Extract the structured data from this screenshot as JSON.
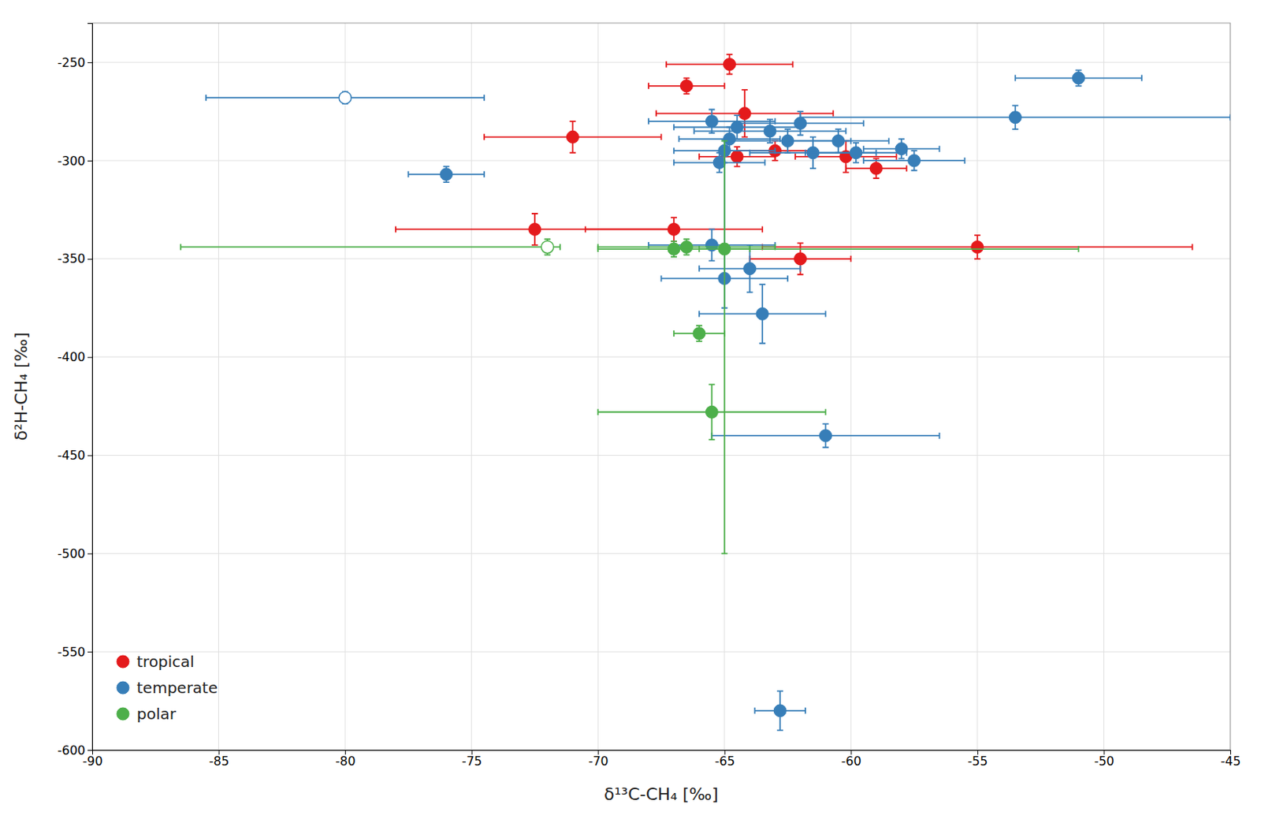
{
  "chart_data": {
    "type": "scatter",
    "xlabel": "δ¹³C-CH₄ [‰]",
    "ylabel": "δ²H-CH₄ [‰]",
    "xlim": [
      -90,
      -45
    ],
    "ylim": [
      -600,
      -230
    ],
    "xticks": [
      -90,
      -85,
      -80,
      -75,
      -70,
      -65,
      -60,
      -55,
      -50,
      -45
    ],
    "yticks": [
      -600,
      -550,
      -500,
      -450,
      -400,
      -350,
      -300,
      -250
    ],
    "grid": true,
    "legend": "lower left",
    "series": [
      {
        "name": "tropical",
        "color": "#e41a1c",
        "x": [
          -64.8,
          -66.5,
          -64.2,
          -71.0,
          -64.5,
          -63.0,
          -60.2,
          -59.0,
          -72.5,
          -67.0,
          -62.0,
          -55.0
        ],
        "values": [
          -251,
          -262,
          -276,
          -288,
          -298,
          -295,
          -298,
          -304,
          -335,
          -335,
          -350,
          -344
        ],
        "xerr": [
          [
            2.5,
            2.5
          ],
          [
            1.5,
            1.5
          ],
          [
            3.5,
            3.5
          ],
          [
            3.5,
            3.5
          ],
          [
            1.5,
            1.5
          ],
          [
            1.5,
            1.5
          ],
          [
            2.0,
            2.0
          ],
          [
            1.2,
            1.2
          ],
          [
            5.5,
            5.5
          ],
          [
            3.5,
            3.5
          ],
          [
            2.0,
            2.0
          ],
          [
            8.5,
            8.5
          ]
        ],
        "yerr": [
          [
            5,
            5
          ],
          [
            4,
            4
          ],
          [
            12,
            12
          ],
          [
            8,
            8
          ],
          [
            5,
            5
          ],
          [
            5,
            5
          ],
          [
            8,
            8
          ],
          [
            5,
            5
          ],
          [
            8,
            8
          ],
          [
            6,
            6
          ],
          [
            8,
            8
          ],
          [
            6,
            6
          ]
        ],
        "markers": [
          "filled",
          "filled",
          "filled",
          "filled",
          "filled",
          "filled",
          "filled",
          "filled",
          "filled",
          "filled",
          "filled",
          "filled"
        ]
      },
      {
        "name": "temperate",
        "color": "#377eb8",
        "x": [
          -80.0,
          -76.0,
          -65.5,
          -64.5,
          -64.8,
          -65.0,
          -65.2,
          -63.2,
          -62.0,
          -62.5,
          -61.5,
          -60.5,
          -59.8,
          -58.0,
          -57.5,
          -53.5,
          -51.0,
          -65.5,
          -64.0,
          -65.0,
          -63.5,
          -61.0,
          -62.8
        ],
        "values": [
          -268,
          -307,
          -280,
          -283,
          -289,
          -295,
          -301,
          -285,
          -281,
          -290,
          -296,
          -290,
          -296,
          -294,
          -300,
          -278,
          -258,
          -343,
          -355,
          -360,
          -378,
          -440,
          -580
        ],
        "xerr": [
          [
            5.5,
            5.5
          ],
          [
            1.5,
            1.5
          ],
          [
            2.5,
            2.5
          ],
          [
            2.5,
            2.5
          ],
          [
            2.0,
            2.0
          ],
          [
            2.0,
            2.0
          ],
          [
            1.8,
            1.8
          ],
          [
            3.0,
            3.0
          ],
          [
            2.5,
            2.5
          ],
          [
            2.5,
            2.5
          ],
          [
            2.5,
            2.5
          ],
          [
            2.0,
            2.0
          ],
          [
            2.0,
            2.0
          ],
          [
            1.5,
            1.5
          ],
          [
            2.0,
            2.0
          ],
          [
            8.5,
            8.5
          ],
          [
            2.5,
            2.5
          ],
          [
            2.5,
            2.5
          ],
          [
            2.0,
            2.0
          ],
          [
            2.5,
            2.5
          ],
          [
            2.5,
            2.5
          ],
          [
            4.5,
            4.5
          ],
          [
            1.0,
            1.0
          ]
        ],
        "yerr": [
          [
            3,
            3
          ],
          [
            4,
            4
          ],
          [
            6,
            6
          ],
          [
            6,
            6
          ],
          [
            6,
            6
          ],
          [
            6,
            6
          ],
          [
            5,
            5
          ],
          [
            6,
            6
          ],
          [
            6,
            6
          ],
          [
            6,
            6
          ],
          [
            8,
            8
          ],
          [
            6,
            6
          ],
          [
            5,
            5
          ],
          [
            5,
            5
          ],
          [
            5,
            5
          ],
          [
            6,
            6
          ],
          [
            4,
            4
          ],
          [
            8,
            8
          ],
          [
            12,
            12
          ],
          [
            15,
            70
          ],
          [
            15,
            15
          ],
          [
            6,
            6
          ],
          [
            10,
            10
          ]
        ],
        "markers": [
          "open",
          "filled",
          "filled",
          "filled",
          "filled",
          "filled",
          "filled",
          "filled",
          "filled",
          "filled",
          "filled",
          "filled",
          "filled",
          "filled",
          "filled",
          "filled",
          "filled",
          "filled",
          "filled",
          "filled",
          "filled",
          "filled",
          "filled"
        ]
      },
      {
        "name": "polar",
        "color": "#4daf4a",
        "x": [
          -72.0,
          -66.5,
          -67.0,
          -66.0,
          -65.5,
          -65.0
        ],
        "values": [
          -344,
          -344,
          -345,
          -388,
          -428,
          -345
        ],
        "xerr": [
          [
            14.5,
            0.5
          ],
          [
            3.5,
            3.5
          ],
          [
            3.0,
            3.0
          ],
          [
            1.0,
            1.0
          ],
          [
            4.5,
            4.5
          ],
          [
            1.0,
            14.0
          ]
        ],
        "yerr": [
          [
            4,
            4
          ],
          [
            4,
            4
          ],
          [
            4,
            4
          ],
          [
            4,
            4
          ],
          [
            14,
            14
          ],
          [
            155,
            55
          ]
        ],
        "markers": [
          "open",
          "filled",
          "filled",
          "filled",
          "filled",
          "filled"
        ]
      }
    ]
  }
}
